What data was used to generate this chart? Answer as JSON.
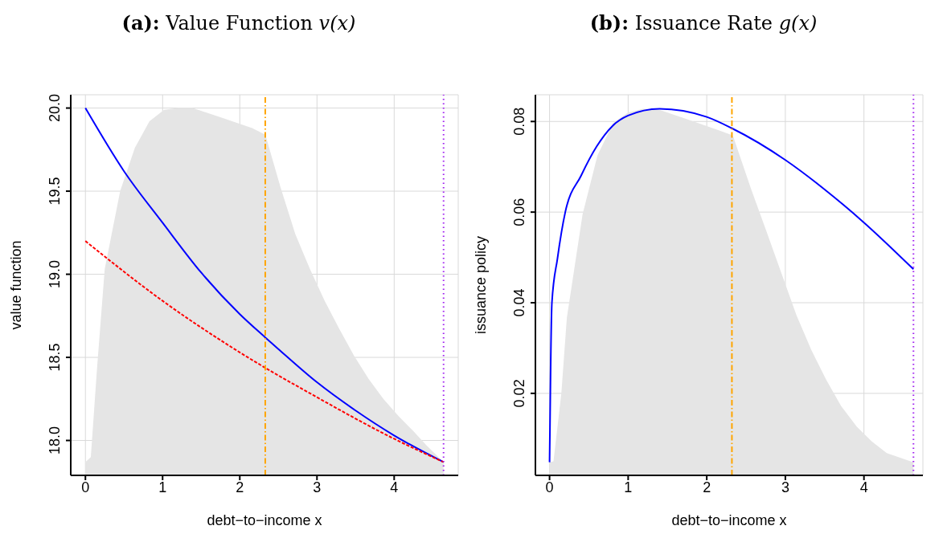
{
  "chart_data": [
    {
      "type": "line",
      "title": "(a): Value Function v(x)",
      "xlabel": "debt−to−income x",
      "ylabel": "value function",
      "xlim": [
        -0.19,
        4.83
      ],
      "xticks": [
        0,
        1,
        2,
        3,
        4
      ],
      "ylim": [
        17.79,
        20.08
      ],
      "yticks": [
        {
          "value": 18,
          "label": "18.0"
        },
        {
          "value": 18.5,
          "label": "18.5"
        },
        {
          "value": 19,
          "label": "19.0"
        },
        {
          "value": 19.5,
          "label": "19.5"
        },
        {
          "value": 20,
          "label": "20.0"
        }
      ],
      "grid": true,
      "ref_lines": [
        {
          "axis": "x",
          "value": 2.33,
          "color": "#ffa500",
          "line_style": "dashdot"
        },
        {
          "axis": "x",
          "value": 4.64,
          "color": "#a020f0",
          "line_style": "dotted"
        }
      ],
      "series": [
        {
          "type": "area",
          "color": "#e5e5e5",
          "x": [
            0,
            0.07,
            0.15,
            0.25,
            0.45,
            0.64,
            0.83,
            1.02,
            1.2,
            1.39,
            1.78,
            2.16,
            2.33,
            2.35,
            2.53,
            2.72,
            2.91,
            3.1,
            3.29,
            3.48,
            3.67,
            3.86,
            4.05,
            4.24,
            4.42,
            4.64
          ],
          "values": [
            17.87,
            17.9,
            18.43,
            19.03,
            19.5,
            19.76,
            19.92,
            19.99,
            20.0,
            20.0,
            19.94,
            19.88,
            19.84,
            19.81,
            19.52,
            19.24,
            19.03,
            18.84,
            18.67,
            18.51,
            18.37,
            18.25,
            18.15,
            18.06,
            17.97,
            17.87
          ]
        },
        {
          "color": "#0000ff",
          "line_style": "solid",
          "x": [
            0,
            0.5,
            1,
            1.5,
            2,
            2.33,
            2.5,
            3,
            3.5,
            4,
            4.64
          ],
          "values": [
            20.0,
            19.62,
            19.31,
            19.01,
            18.76,
            18.62,
            18.55,
            18.35,
            18.18,
            18.03,
            17.87
          ]
        },
        {
          "color": "#ff0000",
          "line_style": "dashed",
          "x": [
            0,
            1,
            2,
            3,
            4,
            4.64
          ],
          "values": [
            19.2,
            18.84,
            18.53,
            18.26,
            18.01,
            17.87
          ]
        }
      ]
    },
    {
      "type": "line",
      "title": "(b): Issuance Rate g(x)",
      "xlabel": "debt−to−income x",
      "ylabel": "issuance policy",
      "xlim": [
        -0.18,
        4.75
      ],
      "xticks": [
        0,
        1,
        2,
        3,
        4
      ],
      "ylim": [
        0.0019,
        0.0859
      ],
      "yticks": [
        0.02,
        0.04,
        0.06,
        0.08
      ],
      "grid": true,
      "ref_lines": [
        {
          "axis": "x",
          "value": 2.32,
          "color": "#ffa500",
          "line_style": "dashdot"
        },
        {
          "axis": "x",
          "value": 4.63,
          "color": "#a020f0",
          "line_style": "dotted"
        }
      ],
      "series": [
        {
          "type": "area",
          "color": "#e5e5e5",
          "x": [
            0,
            0.05,
            0.15,
            0.22,
            0.42,
            0.61,
            0.81,
            1.0,
            1.19,
            1.39,
            1.78,
            2.16,
            2.32,
            2.34,
            2.56,
            2.75,
            2.95,
            3.14,
            3.33,
            3.52,
            3.71,
            3.91,
            4.1,
            4.29,
            4.63
          ],
          "values": [
            0.0048,
            0.005,
            0.02,
            0.0367,
            0.0595,
            0.0725,
            0.0797,
            0.082,
            0.0828,
            0.0826,
            0.0803,
            0.078,
            0.077,
            0.0765,
            0.0653,
            0.0562,
            0.0465,
            0.0373,
            0.0296,
            0.023,
            0.0172,
            0.0126,
            0.0094,
            0.0068,
            0.0048
          ]
        },
        {
          "color": "#0000ff",
          "line_style": "solid",
          "x": [
            0,
            0.005,
            0.01,
            0.03,
            0.1,
            0.2,
            0.4,
            0.6,
            0.8,
            1,
            1.4,
            2,
            2.32,
            3,
            3.5,
            4,
            4.63
          ],
          "values": [
            0.0048,
            0.012,
            0.02,
            0.04,
            0.0497,
            0.06,
            0.068,
            0.0745,
            0.079,
            0.0813,
            0.0828,
            0.081,
            0.0785,
            0.0715,
            0.065,
            0.0577,
            0.0474
          ]
        }
      ]
    }
  ]
}
